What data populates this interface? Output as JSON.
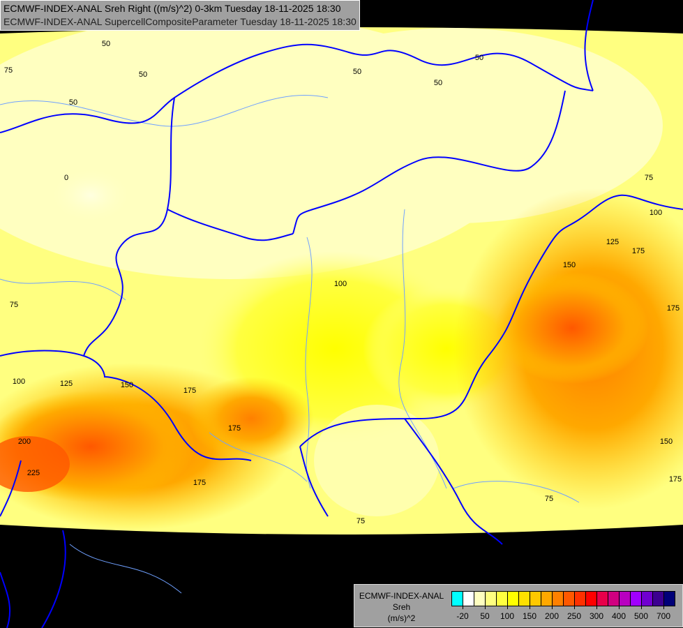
{
  "title": {
    "line1": "ECMWF-INDEX-ANAL Sreh Right ((m/s)^2) 0-3km Tuesday 18-11-2025 18:30",
    "line2": "ECMWF-INDEX-ANAL SupercellCompositeParameter Tuesday 18-11-2025 18:30"
  },
  "legend": {
    "model": "ECMWF-INDEX-ANAL",
    "variable": "Sreh",
    "unit": "(m/s)^2",
    "colors": [
      "#00ffff",
      "#ffffff",
      "#ffffc0",
      "#ffff80",
      "#ffff40",
      "#ffff00",
      "#ffe000",
      "#ffc800",
      "#ffa800",
      "#ff8000",
      "#ff5800",
      "#ff3000",
      "#ff0000",
      "#e8004a",
      "#d00080",
      "#b800c0",
      "#a000ff",
      "#7000d0",
      "#3c0090",
      "#000078"
    ],
    "tick_labels": [
      "-20",
      "50",
      "100",
      "150",
      "200",
      "250",
      "300",
      "400",
      "500",
      "700"
    ]
  },
  "contour_labels": [
    "50",
    "50",
    "50",
    "50",
    "50",
    "50",
    "75",
    "75",
    "75",
    "0",
    "100",
    "100",
    "100",
    "125",
    "125",
    "150",
    "150",
    "150",
    "175",
    "175",
    "175",
    "175",
    "175",
    "175",
    "200",
    "225",
    "75",
    "75"
  ],
  "colors": {
    "border": "#0000ff",
    "rivers": "#6fa0ff",
    "background": "#000000"
  }
}
